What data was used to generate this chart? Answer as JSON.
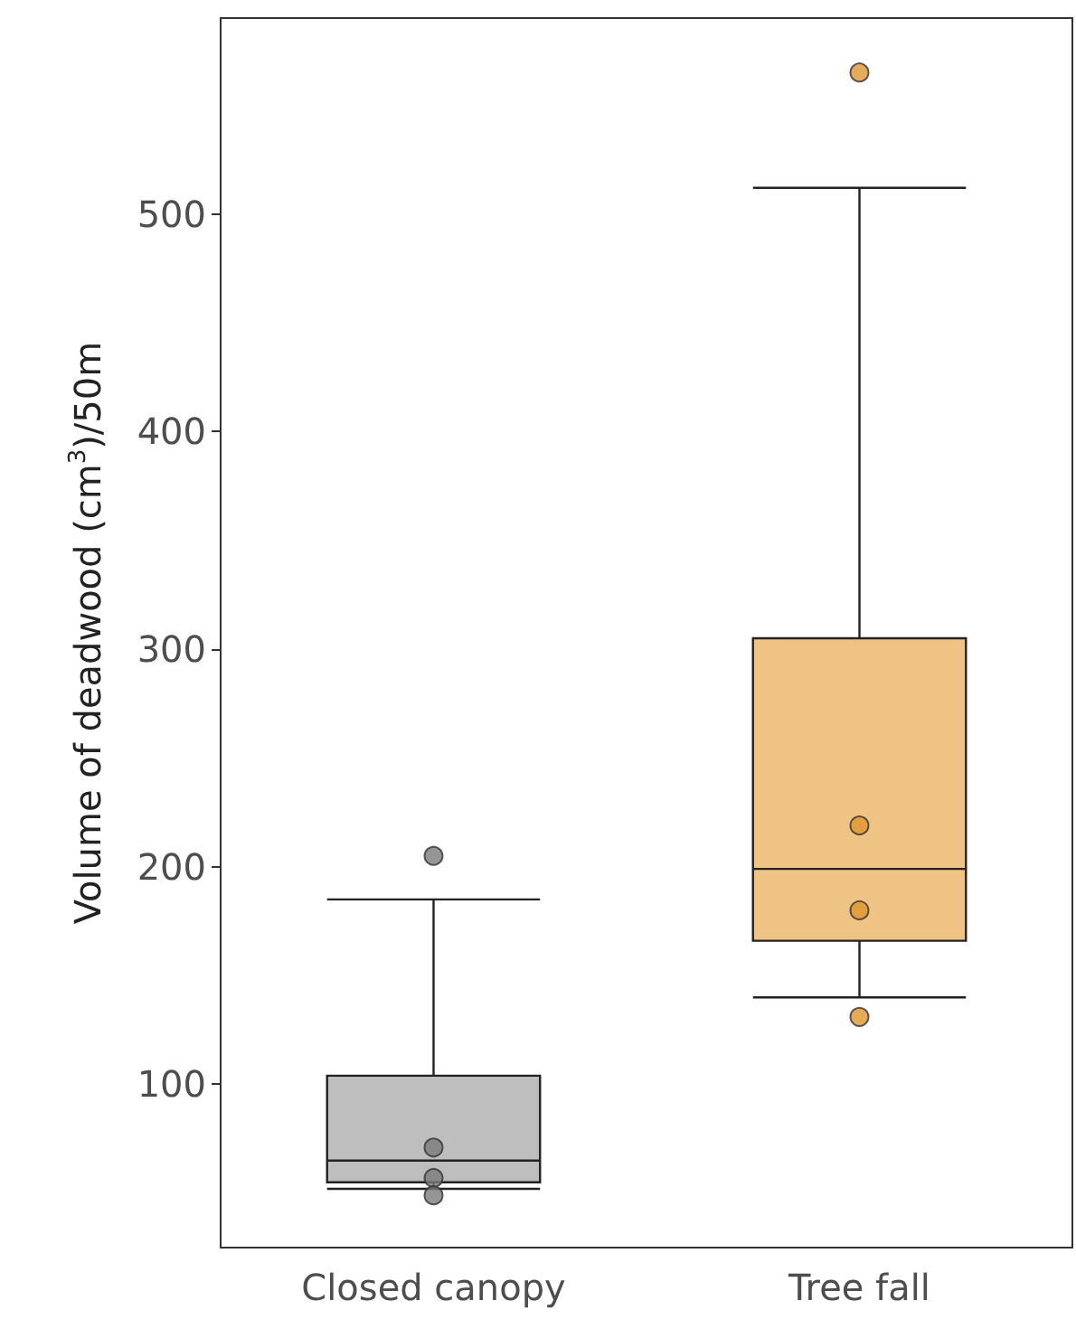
{
  "chart_data": {
    "type": "box",
    "ylabel": "Volume of deadwood (cm$^{3}$)/50m",
    "categories": [
      "Closed canopy",
      "Tree fall"
    ],
    "boxes": [
      {
        "low": 52,
        "q1": 55,
        "median": 65,
        "q3": 104,
        "high": 185
      },
      {
        "low": 140,
        "q1": 166,
        "median": 199,
        "q3": 305,
        "high": 512
      }
    ],
    "colors": [
      "#bebebe",
      "#efc384"
    ],
    "series": [
      {
        "type": "scatter",
        "x": [
          "Closed canopy",
          "Closed canopy",
          "Closed canopy",
          "Closed canopy"
        ],
        "values": [
          205,
          71,
          57,
          49
        ],
        "color": "#7a7a7a"
      },
      {
        "type": "scatter",
        "x": [
          "Tree fall",
          "Tree fall",
          "Tree fall",
          "Tree fall"
        ],
        "values": [
          565,
          219,
          180,
          131
        ],
        "color": "#e0962e"
      }
    ],
    "marker": "circle",
    "ylim": [
      25,
      590
    ],
    "yticks": [
      100,
      200,
      300,
      400,
      500
    ],
    "grid": false
  }
}
